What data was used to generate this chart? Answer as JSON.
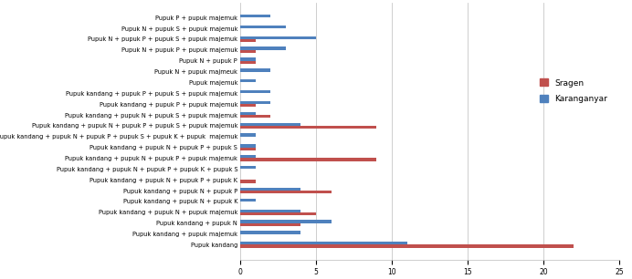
{
  "categories": [
    "Pupuk P + pupuk majemuk",
    "Pupuk N + pupuk S + pupuk majemuk",
    "Pupuk N + pupuk P + pupuk S + pupuk majemuk",
    "Pupuk N + pupuk P + pupuk majemuk",
    "Pupuk N + pupuk P",
    "Pupuk N + pupuk majmeuk",
    "Pupuk majemuk",
    "Pupuk kandang + pupuk P + pupuk S + pupuk majemuk",
    "Pupuk kandang + pupuk P + pupuk majemuk",
    "Pupuk kandang + pupuk N + pupuk S + pupuk majemuk",
    "Pupuk kandang + pupuk N + pupuk P + pupuk S + pupuk majemuk",
    "Pupuk kandang + pupuk N + pupuk P + pupuk S + pupuk K + pupuk  majemuk",
    "Pupuk kandang + pupuk N + pupuk P + pupuk S",
    "Pupuk kandang + pupuk N + pupuk P + pupuk majemuk",
    "Pupuk kandang + pupuk N + pupuk P + pupuk K + pupuk S",
    "Pupuk kandang + pupuk N + pupuk P + pupuk K",
    "Pupuk kandang + pupuk N + pupuk P",
    "Pupuk kandang + pupuk N + pupuk K",
    "Pupuk kandang + pupuk N + pupuk majemuk",
    "Pupuk kandang + pupuk N",
    "Pupuk kandang + pupuk majemuk",
    "Pupuk kandang"
  ],
  "sragen": [
    0,
    0,
    1,
    1,
    1,
    0,
    0,
    0,
    1,
    2,
    9,
    0,
    1,
    9,
    0,
    1,
    6,
    0,
    5,
    4,
    0,
    22
  ],
  "karanganyar": [
    2,
    3,
    5,
    3,
    1,
    2,
    1,
    2,
    2,
    1,
    4,
    1,
    1,
    1,
    1,
    0,
    4,
    1,
    4,
    6,
    4,
    11
  ],
  "sragen_color": "#C0504D",
  "karanganyar_color": "#4F81BD",
  "xlim": [
    0,
    25
  ],
  "xticks": [
    0,
    5,
    10,
    15,
    20,
    25
  ],
  "legend_sragen": "Sragen",
  "legend_karanganyar": "Karanganyar",
  "bar_height": 0.28,
  "label_fontsize": 4.8,
  "tick_fontsize": 5.5,
  "legend_fontsize": 6.5,
  "background_color": "#FFFFFF"
}
